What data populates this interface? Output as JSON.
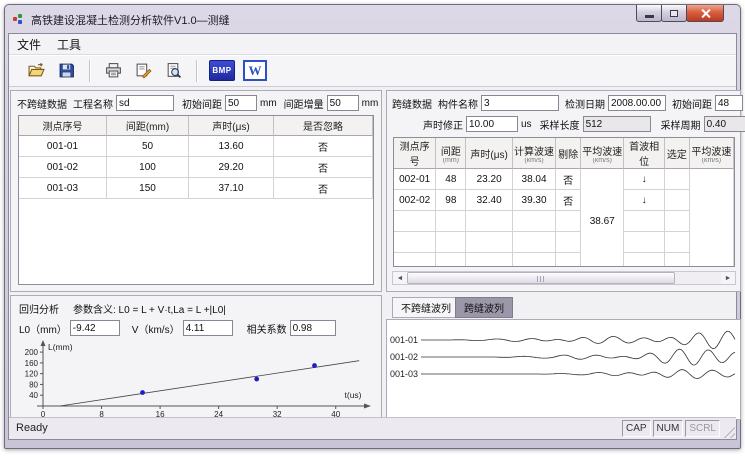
{
  "window": {
    "title": "高铁建设混凝土检测分析软件V1.0—测缝"
  },
  "menu": {
    "items": [
      "文件",
      "工具"
    ]
  },
  "toolbar": {
    "bmp_label": "BMP",
    "word_label": "W"
  },
  "left_panel": {
    "title": "不跨缝数据",
    "fields": {
      "project_label": "工程名称",
      "project_value": "sd",
      "spacing_label": "初始间距",
      "spacing_value": "50",
      "spacing_unit": "mm",
      "increment_label": "间距增量",
      "increment_value": "50",
      "increment_unit": "mm"
    },
    "table": {
      "headers": [
        "测点序号",
        "间距(mm)",
        "声时(μs)",
        "是否忽略"
      ],
      "rows": [
        [
          "001-01",
          "50",
          "13.60",
          "否"
        ],
        [
          "001-02",
          "100",
          "29.20",
          "否"
        ],
        [
          "001-03",
          "150",
          "37.10",
          "否"
        ]
      ]
    }
  },
  "right_panel": {
    "title": "跨缝数据",
    "fields": {
      "component_label": "构件名称",
      "component_value": "3",
      "date_label": "检测日期",
      "date_value": "2008.00.00",
      "init_label": "初始间距",
      "init_value": "48",
      "init_unit": "mm",
      "correction_label": "声时修正",
      "correction_value": "10.00",
      "correction_unit": "us",
      "length_label": "采样长度",
      "length_value": "512",
      "period_label": "采样周期",
      "period_value": "0.40",
      "period_unit": "us"
    },
    "table": {
      "headers": [
        {
          "t": "测点序号",
          "s": ""
        },
        {
          "t": "间距",
          "s": "(mm)"
        },
        {
          "t": "声时(μs)",
          "s": ""
        },
        {
          "t": "计算波速",
          "s": "(km/s)"
        },
        {
          "t": "剔除",
          "s": ""
        },
        {
          "t": "平均波速",
          "s": "(km/s)"
        },
        {
          "t": "首波相位",
          "s": ""
        },
        {
          "t": "选定",
          "s": ""
        },
        {
          "t": "平均波速",
          "s": "(km/s)"
        }
      ],
      "rows": [
        [
          "002-01",
          "48",
          "23.20",
          "38.04",
          "否",
          "",
          "↓",
          "",
          ""
        ],
        [
          "002-02",
          "98",
          "32.40",
          "39.30",
          "否",
          "",
          "↓",
          "",
          ""
        ],
        [
          "",
          "",
          "",
          "",
          "",
          "38.67",
          "",
          "",
          ""
        ],
        [
          "",
          "",
          "",
          "",
          "",
          "",
          "",
          "",
          ""
        ],
        [
          "",
          "",
          "",
          "",
          "",
          "",
          "",
          "",
          ""
        ]
      ]
    }
  },
  "regression": {
    "title": "回归分析",
    "formula": "参数含义: L0 = L + V·t,La = L +|L0|",
    "l0_label": "L0（mm）",
    "l0_value": "-9.42",
    "v_label": "V（km/s）",
    "v_value": "4.11",
    "corr_label": "相关系数",
    "corr_value": "0.98"
  },
  "chart_data": {
    "type": "scatter",
    "title": "",
    "xlabel": "t(us)",
    "ylabel": "L(mm)",
    "x_ticks": [
      0,
      8,
      16,
      24,
      32,
      40
    ],
    "y_ticks": [
      40,
      80,
      120,
      160,
      200
    ],
    "xlim": [
      0,
      44
    ],
    "ylim": [
      0,
      230
    ],
    "points": [
      {
        "t": 13.6,
        "L": 50
      },
      {
        "t": 29.2,
        "L": 100
      },
      {
        "t": 37.1,
        "L": 150
      }
    ],
    "regression_line": {
      "intercept": -9.42,
      "slope": 4.11
    },
    "point_color": "#1f1fbf",
    "line_color": "#444444",
    "grid": false,
    "legend": "none"
  },
  "wave_panel": {
    "tabs": [
      {
        "label": "不跨缝波列",
        "active": false
      },
      {
        "label": "跨缝波列",
        "active": true
      }
    ],
    "traces": [
      {
        "label": "001-01"
      },
      {
        "label": "001-02"
      },
      {
        "label": "001-03"
      }
    ]
  },
  "status_bar": {
    "message": "Ready",
    "indicators": [
      "CAP",
      "NUM",
      "SCRL"
    ]
  },
  "colors": {
    "titlebar": "#d3cfdf",
    "close_button": "#d9603f",
    "accent_blue": "#2b50c8",
    "tab_active_bg": "#9b97a9",
    "point_blue": "#1f1fbf"
  }
}
